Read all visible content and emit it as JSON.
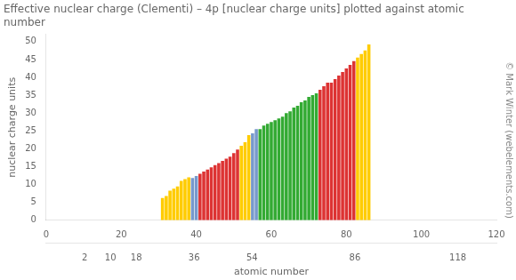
{
  "chart_data": {
    "type": "bar",
    "title": "Effective nuclear charge (Clementi) – 4p [nuclear charge units] plotted against atomic\nnumber",
    "ylabel": "nuclear charge units",
    "xlabel": "atomic number",
    "annotations": [
      "© Mark Winter (webelements.com)"
    ],
    "x": [
      31,
      32,
      33,
      34,
      35,
      36,
      37,
      38,
      39,
      40,
      41,
      42,
      43,
      44,
      45,
      46,
      47,
      48,
      49,
      50,
      51,
      52,
      53,
      54,
      55,
      56,
      57,
      58,
      59,
      60,
      61,
      62,
      63,
      64,
      65,
      66,
      67,
      68,
      69,
      70,
      71,
      72,
      73,
      74,
      75,
      76,
      77,
      78,
      79,
      80,
      81,
      82,
      83,
      84,
      85,
      86
    ],
    "values": [
      6.22,
      6.78,
      8.29,
      8.82,
      9.45,
      11.0,
      11.49,
      11.99,
      11.84,
      12.42,
      13.02,
      13.62,
      14.22,
      14.82,
      15.42,
      16.02,
      16.62,
      17.22,
      17.82,
      18.82,
      19.82,
      20.82,
      21.82,
      23.82,
      24.33,
      25.52,
      25.52,
      26.52,
      27.02,
      27.52,
      28.02,
      28.52,
      29.02,
      30.02,
      30.52,
      31.52,
      32.02,
      33.02,
      33.52,
      34.52,
      35.02,
      35.52,
      36.52,
      37.52,
      38.52,
      38.52,
      39.52,
      40.52,
      41.52,
      42.52,
      43.52,
      44.52,
      45.52,
      46.52,
      47.52,
      49.22
    ],
    "colors": [
      "#ffcc00",
      "#ffcc00",
      "#ffcc00",
      "#ffcc00",
      "#ffcc00",
      "#ffcc00",
      "#ffcc00",
      "#ffcc00",
      "#7799cc",
      "#7799cc",
      "#dd3333",
      "#dd3333",
      "#dd3333",
      "#dd3333",
      "#dd3333",
      "#dd3333",
      "#dd3333",
      "#dd3333",
      "#dd3333",
      "#dd3333",
      "#dd3333",
      "#ffcc00",
      "#ffcc00",
      "#ffcc00",
      "#7799cc",
      "#7799cc",
      "#33aa33",
      "#33aa33",
      "#33aa33",
      "#33aa33",
      "#33aa33",
      "#33aa33",
      "#33aa33",
      "#33aa33",
      "#33aa33",
      "#33aa33",
      "#33aa33",
      "#33aa33",
      "#33aa33",
      "#33aa33",
      "#33aa33",
      "#33aa33",
      "#dd3333",
      "#dd3333",
      "#dd3333",
      "#dd3333",
      "#dd3333",
      "#dd3333",
      "#dd3333",
      "#dd3333",
      "#dd3333",
      "#dd3333",
      "#ffcc00",
      "#ffcc00",
      "#ffcc00",
      "#ffcc00"
    ],
    "xlim": [
      0,
      120
    ],
    "xticks": [
      0,
      20,
      40,
      60,
      80,
      100,
      120
    ],
    "x2lim": [
      0,
      120
    ],
    "x2ticks": [
      2,
      10,
      18,
      36,
      54,
      86,
      118
    ],
    "ylim": [
      0,
      52
    ],
    "yticks": [
      0,
      5,
      10,
      15,
      20,
      25,
      30,
      35,
      40,
      45,
      50
    ],
    "grid": false,
    "legend": false
  }
}
